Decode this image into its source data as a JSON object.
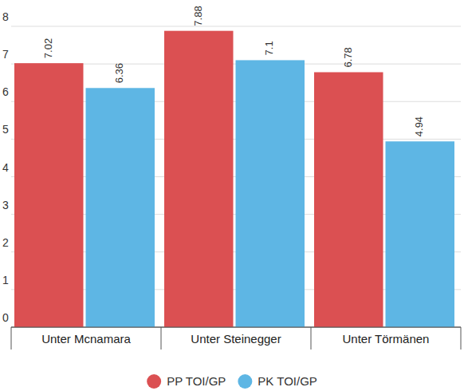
{
  "chart_data": {
    "type": "bar",
    "categories": [
      "Unter Mcnamara",
      "Unter Steinegger",
      "Unter Törmänen"
    ],
    "series": [
      {
        "name": "PP TOI/GP",
        "color": "#db5052",
        "values": [
          7.02,
          7.88,
          6.78
        ]
      },
      {
        "name": "PK TOI/GP",
        "color": "#5eb6e4",
        "values": [
          6.36,
          7.1,
          4.94
        ]
      }
    ],
    "ylim": [
      0,
      8
    ],
    "yticks": [
      0,
      1,
      2,
      3,
      4,
      5,
      6,
      7,
      8
    ],
    "grid": true,
    "data_labels": true,
    "legend": "bottom"
  }
}
